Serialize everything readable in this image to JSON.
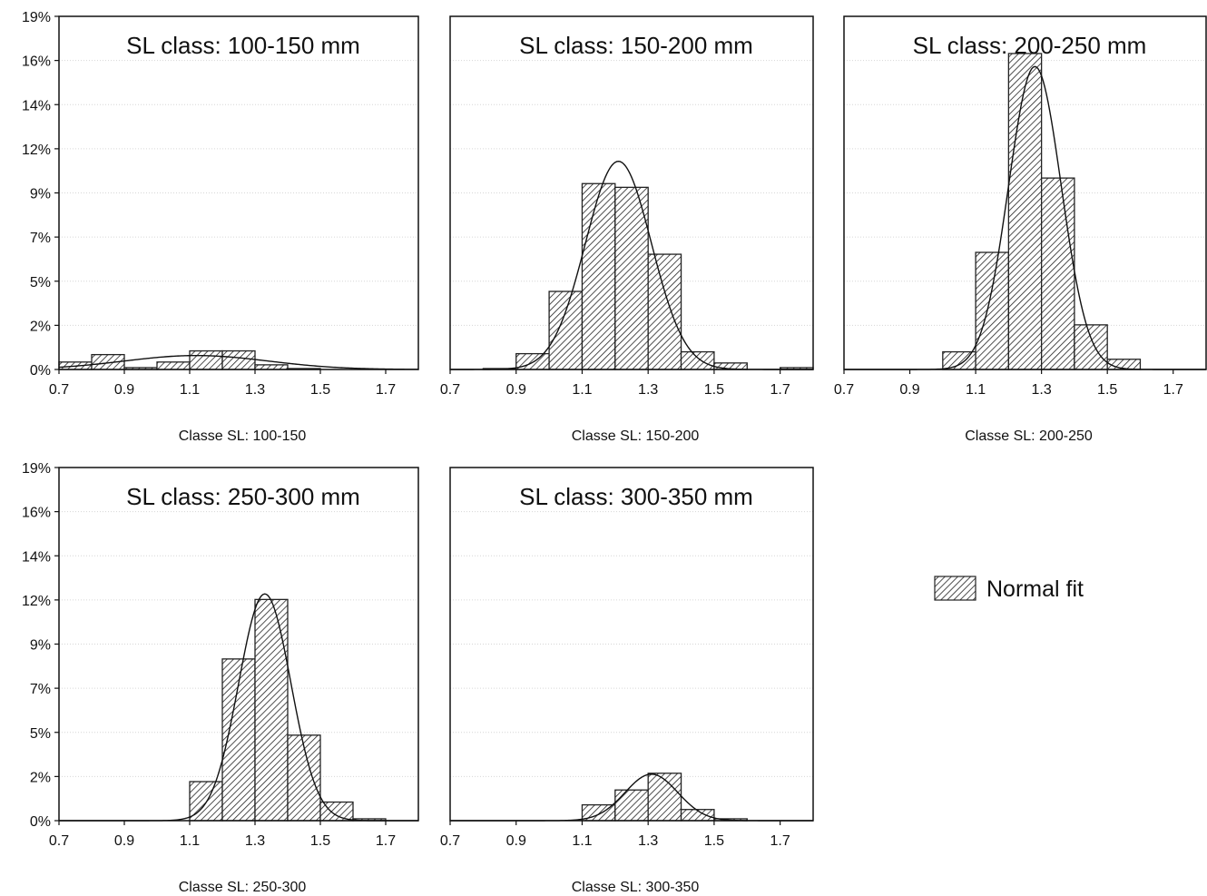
{
  "legend": {
    "label": "Normal fit"
  },
  "chart_data": [
    {
      "type": "bar",
      "title": "SL class: 100-150 mm",
      "xlabel": "Classe SL: 100-150",
      "bin_edges": [
        0.7,
        0.8,
        0.9,
        1.0,
        1.1,
        1.2,
        1.3,
        1.4,
        1.5,
        1.6,
        1.7,
        1.8
      ],
      "values": [
        0.4,
        0.8,
        0.1,
        0.4,
        1.0,
        1.0,
        0.25,
        0.05,
        0.0,
        0.0,
        0.0
      ],
      "fit": {
        "mean": 1.12,
        "sd": 0.22,
        "peak": 0.75
      },
      "xticks": [
        "0.7",
        "0.9",
        "1.1",
        "1.3",
        "1.5",
        "1.7"
      ],
      "yticks": [
        "0%",
        "2%",
        "5%",
        "7%",
        "9%",
        "12%",
        "14%",
        "16%",
        "19%"
      ],
      "ylim": [
        0,
        19
      ]
    },
    {
      "type": "bar",
      "title": "SL class: 150-200 mm",
      "xlabel": "Classe SL: 150-200",
      "bin_edges": [
        0.7,
        0.8,
        0.9,
        1.0,
        1.1,
        1.2,
        1.3,
        1.4,
        1.5,
        1.6,
        1.7,
        1.8
      ],
      "values": [
        0.0,
        0.05,
        0.85,
        4.2,
        10.0,
        9.8,
        6.2,
        0.95,
        0.35,
        0.0,
        0.1
      ],
      "fit": {
        "mean": 1.21,
        "sd": 0.1,
        "peak": 11.2
      },
      "xticks": [
        "0.7",
        "0.9",
        "1.1",
        "1.3",
        "1.5",
        "1.7"
      ],
      "ylim": [
        0,
        19
      ]
    },
    {
      "type": "bar",
      "title": "SL class: 200-250 mm",
      "xlabel": "Classe SL: 200-250",
      "bin_edges": [
        0.7,
        0.8,
        0.9,
        1.0,
        1.1,
        1.2,
        1.3,
        1.4,
        1.5,
        1.6,
        1.7,
        1.8
      ],
      "values": [
        0.0,
        0.0,
        0.0,
        0.95,
        6.3,
        17.0,
        10.3,
        2.4,
        0.55,
        0.0,
        0.0
      ],
      "fit": {
        "mean": 1.28,
        "sd": 0.08,
        "peak": 16.3
      },
      "xticks": [
        "0.7",
        "0.9",
        "1.1",
        "1.3",
        "1.5",
        "1.7"
      ],
      "ylim": [
        0,
        19
      ]
    },
    {
      "type": "bar",
      "title": "SL class: 250-300 mm",
      "xlabel": "Classe SL: 250-300",
      "bin_edges": [
        0.7,
        0.8,
        0.9,
        1.0,
        1.1,
        1.2,
        1.3,
        1.4,
        1.5,
        1.6,
        1.7,
        1.8
      ],
      "values": [
        0.0,
        0.0,
        0.0,
        0.0,
        2.1,
        8.7,
        11.9,
        4.6,
        1.0,
        0.1,
        0.0
      ],
      "fit": {
        "mean": 1.33,
        "sd": 0.08,
        "peak": 12.2
      },
      "xticks": [
        "0.7",
        "0.9",
        "1.1",
        "1.3",
        "1.5",
        "1.7"
      ],
      "yticks": [
        "0%",
        "2%",
        "5%",
        "7%",
        "9%",
        "12%",
        "14%",
        "16%",
        "19%"
      ],
      "ylim": [
        0,
        19
      ]
    },
    {
      "type": "bar",
      "title": "SL class: 300-350 mm",
      "xlabel": "Classe SL: 300-350",
      "bin_edges": [
        0.7,
        0.8,
        0.9,
        1.0,
        1.1,
        1.2,
        1.3,
        1.4,
        1.5,
        1.6,
        1.7,
        1.8
      ],
      "values": [
        0.0,
        0.0,
        0.0,
        0.0,
        0.85,
        1.65,
        2.55,
        0.6,
        0.1,
        0.0,
        0.0
      ],
      "fit": {
        "mean": 1.31,
        "sd": 0.08,
        "peak": 2.5
      },
      "xticks": [
        "0.7",
        "0.9",
        "1.1",
        "1.3",
        "1.5",
        "1.7"
      ],
      "ylim": [
        0,
        19
      ]
    }
  ]
}
